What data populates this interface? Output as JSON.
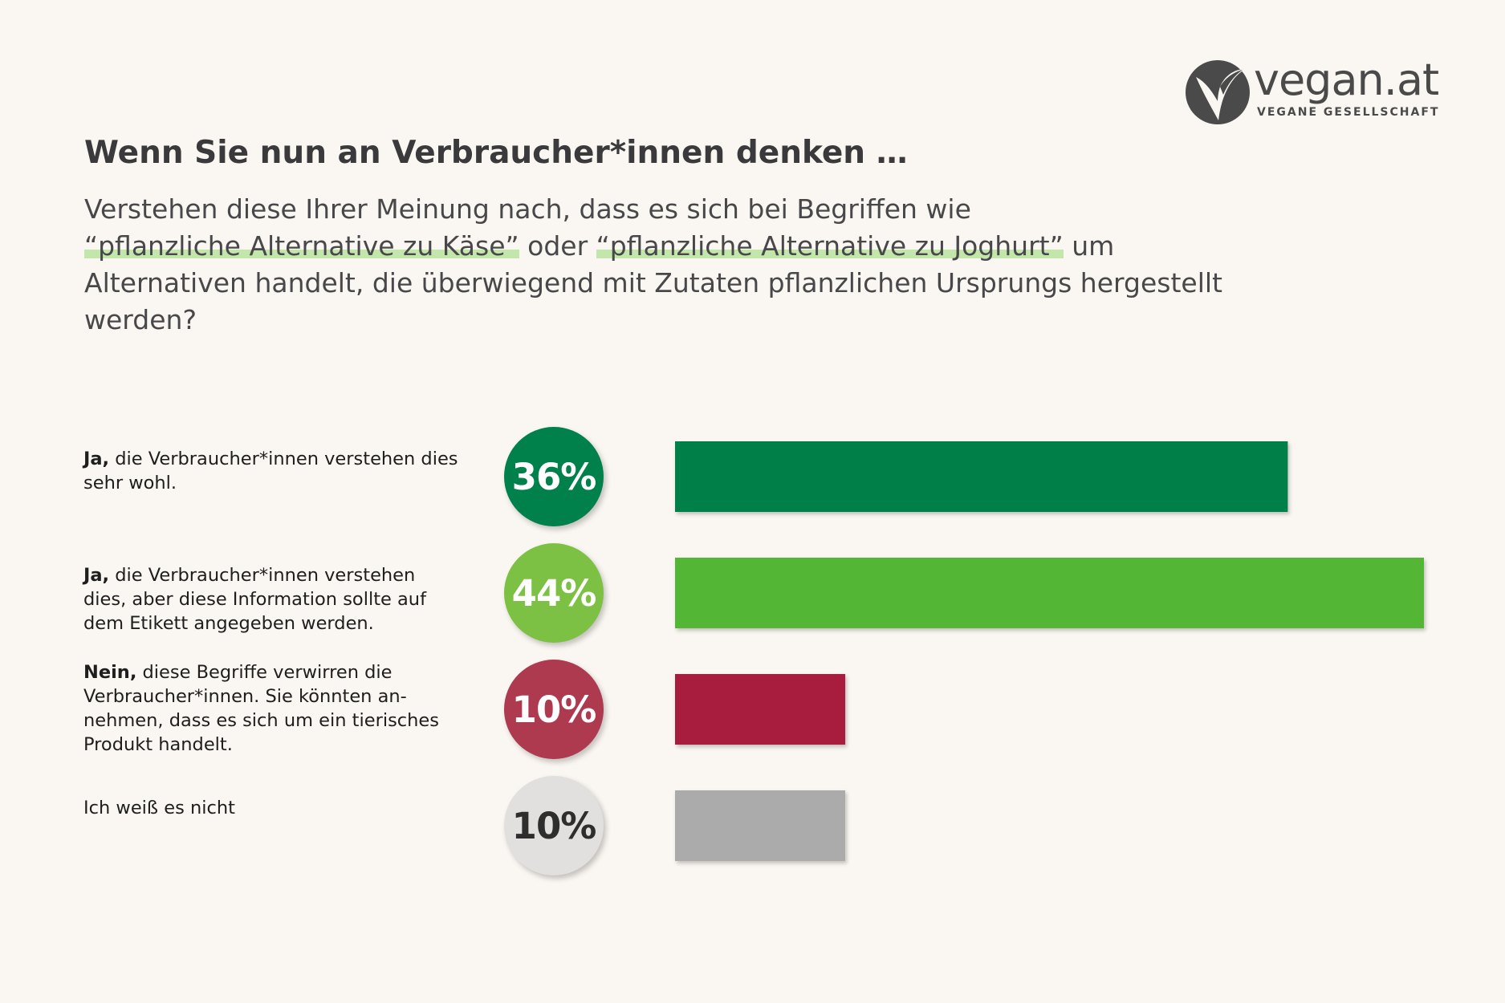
{
  "logo": {
    "wordmark": "vegan.at",
    "subtitle": "VEGANE GESELLSCHAFT",
    "icon": "v-leaf-icon",
    "color": "#4a4a4a"
  },
  "chart_data": {
    "type": "bar",
    "orientation": "horizontal",
    "title": "Wenn Sie nun an Verbraucher*innen denken …",
    "question": {
      "part1": "Verstehen diese Ihrer Meinung nach, dass es sich bei Begriffen wie",
      "term1": "“pflanzliche Alternative zu Käse”",
      "connector": "oder",
      "term2": "“pflanzliche Alternative zu Joghurt”",
      "part2": "um Alternativen handelt, die überwiegend mit Zutaten pflanzlichen Ursprungs hergestellt werden?"
    },
    "unit": "%",
    "xlim": [
      0,
      44
    ],
    "grid": false,
    "legend": "none",
    "categories": [
      {
        "bold": "Ja,",
        "text": " die Verbraucher*innen verstehen dies sehr wohl.",
        "value": 36,
        "label": "36%",
        "color": "#00804a",
        "badge_color": "#00804a",
        "badge_text_color": "#ffffff"
      },
      {
        "bold": "Ja,",
        "text": " die Verbraucher*innen verstehen dies, aber diese Information sollte auf dem Etikett angegeben werden.",
        "value": 44,
        "label": "44%",
        "color": "#52b734",
        "badge_color": "#7dc144",
        "badge_text_color": "#ffffff"
      },
      {
        "bold": "Nein,",
        "text": " diese Begriffe verwirren die Verbraucher*innen. Sie könnten an-nehmen, dass es sich um ein tierisches Produkt handelt.",
        "value": 10,
        "label": "10%",
        "color": "#a81e3e",
        "badge_color": "#ad3a4f",
        "badge_text_color": "#ffffff"
      },
      {
        "bold": "",
        "text": "Ich weiß es nicht",
        "value": 10,
        "label": "10%",
        "color": "#ababab",
        "badge_color": "#e2e0de",
        "badge_text_color": "#2e2e2e"
      }
    ]
  }
}
